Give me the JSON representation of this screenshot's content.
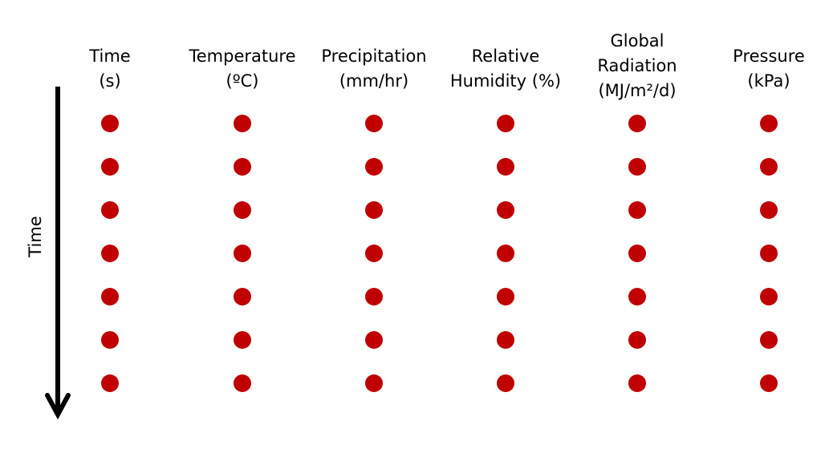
{
  "columns": [
    {
      "key": "time",
      "lines": [
        "Time",
        "(s)"
      ]
    },
    {
      "key": "temperature",
      "lines": [
        "Temperature",
        "(ºC)"
      ]
    },
    {
      "key": "precipitation",
      "lines": [
        "Precipitation",
        "(mm/hr)"
      ]
    },
    {
      "key": "relative-humidity",
      "lines": [
        "Relative",
        "Humidity (%)"
      ]
    },
    {
      "key": "global-radiation",
      "lines": [
        "Global",
        "Radiation",
        "(MJ/m²/d)"
      ]
    },
    {
      "key": "pressure",
      "lines": [
        "Pressure",
        "(kPa)"
      ]
    }
  ],
  "rows_per_column": 7,
  "dot_color": "#c00000",
  "arrow_color": "#000000",
  "time_axis_label": "Time"
}
